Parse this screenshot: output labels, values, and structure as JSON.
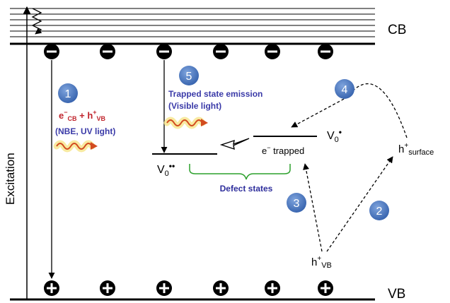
{
  "bands": {
    "cb_label": "CB",
    "vb_label": "VB"
  },
  "excitation_label": "Excitation",
  "steps": [
    {
      "number": "1"
    },
    {
      "number": "2"
    },
    {
      "number": "3"
    },
    {
      "number": "4"
    },
    {
      "number": "5"
    }
  ],
  "nbe": {
    "e_main": "e",
    "e_sup": "−",
    "e_sub": "CB",
    "plus": " + h",
    "h_sup": "+",
    "h_sub": "VB",
    "caption": "(NBE, UV light)"
  },
  "trapped_emission": {
    "line1": "Trapped state emission",
    "line2": "(Visible light)"
  },
  "levels": {
    "vo_double_base": "V",
    "vo_double_sub": "0",
    "vo_double_sup": "••",
    "vo_single_base": "V",
    "vo_single_sub": "0",
    "vo_single_sup": "•",
    "e_trapped_e": "e",
    "e_trapped_sup": "−",
    "e_trapped_rest": " trapped",
    "defect_states": "Defect states"
  },
  "holes": {
    "surface_h": "h",
    "surface_sup": "+",
    "surface_sub": "surface",
    "vb_h": "h",
    "vb_sup": "+",
    "vb_sub": "VB"
  },
  "colors": {
    "step_badge": "#4a79c2",
    "nbe_text": "#c0232b",
    "emission_text": "#3a3aa8",
    "defect_brace": "#2ca02c",
    "defect_text": "#2e2e9c",
    "wave": "#d24b1f",
    "wave_glow": "#f6e58a"
  },
  "icons": {
    "electron": "minus-circle-icon",
    "hole": "plus-circle-icon",
    "photon": "wavy-photon-icon"
  }
}
